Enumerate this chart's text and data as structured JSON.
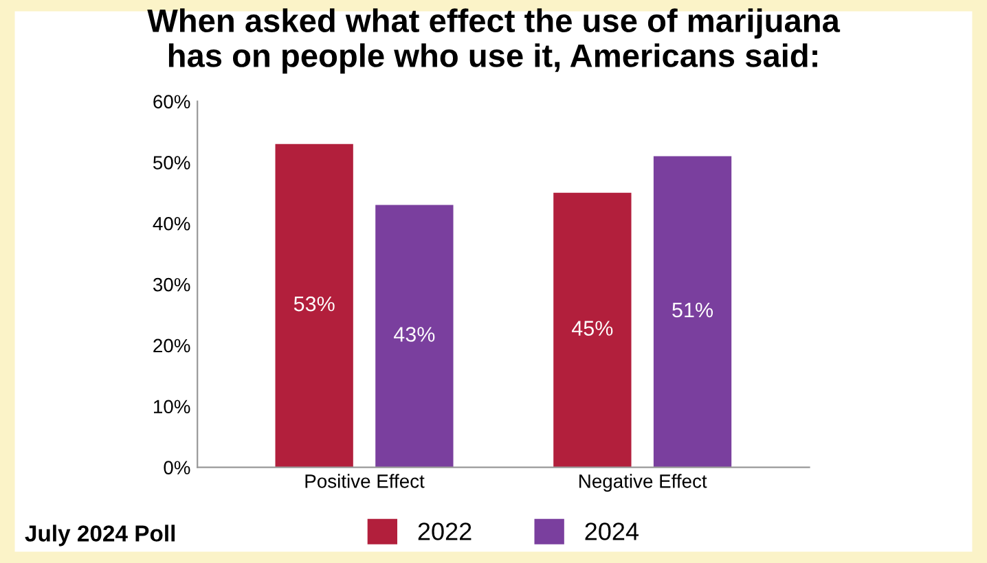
{
  "chart_data": {
    "type": "bar",
    "title": "When asked what effect the use of marijuana\nhas on people who use it, Americans said:",
    "categories": [
      "Positive Effect",
      "Negative Effect"
    ],
    "series": [
      {
        "name": "2022",
        "color": "#b21f3c",
        "values": [
          53,
          45
        ],
        "value_labels": [
          "53%",
          "45%"
        ]
      },
      {
        "name": "2024",
        "color": "#7a3f9e",
        "values": [
          43,
          51
        ],
        "value_labels": [
          "43%",
          "51%"
        ]
      }
    ],
    "ylim": [
      0,
      60
    ],
    "yticks": [
      {
        "value": 0,
        "label": "0%"
      },
      {
        "value": 10,
        "label": "10%"
      },
      {
        "value": 20,
        "label": "20%"
      },
      {
        "value": 30,
        "label": "30%"
      },
      {
        "value": 40,
        "label": "40%"
      },
      {
        "value": 50,
        "label": "50%"
      },
      {
        "value": 60,
        "label": "60%"
      }
    ],
    "grid": false,
    "legend": "bottom",
    "annotations": [
      "July 2024 Poll"
    ]
  }
}
